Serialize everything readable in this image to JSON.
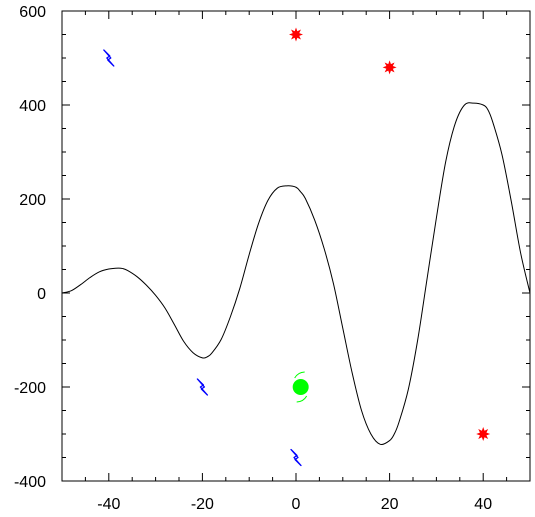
{
  "chart_data": {
    "type": "line",
    "title": "",
    "xlabel": "",
    "ylabel": "",
    "xlim": [
      -50,
      50
    ],
    "ylim": [
      -400,
      600
    ],
    "grid": false,
    "x_ticks": [
      -40,
      -20,
      0,
      20,
      40
    ],
    "y_ticks": [
      -400,
      -200,
      0,
      200,
      400,
      600
    ],
    "x_tick_labels": [
      "-40",
      "-20",
      "0",
      "20",
      "40"
    ],
    "y_tick_labels": [
      "-400",
      "-200",
      "0",
      "200",
      "400",
      "600"
    ],
    "series": [
      {
        "style": "line",
        "color": "#000000",
        "x": [
          -50,
          -48,
          -46,
          -44,
          -42,
          -40,
          -38,
          -37,
          -36,
          -34,
          -32,
          -30,
          -28,
          -26,
          -24,
          -22,
          -20,
          -19,
          -18,
          -16,
          -14,
          -12,
          -10,
          -8,
          -6,
          -4,
          -2,
          0,
          1,
          2,
          4,
          6,
          8,
          10,
          12,
          14,
          16,
          18,
          20,
          21,
          22,
          24,
          26,
          28,
          30,
          32,
          34,
          36,
          38,
          40,
          41,
          42,
          44,
          46,
          48,
          50
        ],
        "y": [
          0,
          5,
          18,
          33,
          45,
          51,
          53,
          52,
          48,
          35,
          17,
          -5,
          -32,
          -67,
          -103,
          -127,
          -138,
          -136,
          -128,
          -99,
          -50,
          10,
          82,
          148,
          197,
          223,
          228,
          225,
          215,
          201,
          155,
          95,
          20,
          -75,
          -170,
          -250,
          -300,
          -322,
          -314,
          -300,
          -275,
          -205,
          -100,
          30,
          160,
          280,
          360,
          400,
          404,
          400,
          390,
          365,
          295,
          195,
          85,
          0
        ]
      },
      {
        "style": "markers",
        "marker": "star",
        "color": "#ff0000",
        "x": [
          0,
          20,
          40
        ],
        "y": [
          550,
          480,
          -300
        ]
      },
      {
        "style": "markers",
        "marker": "lightning",
        "color": "#0000ff",
        "x": [
          -40,
          -20,
          0
        ],
        "y": [
          500,
          -200,
          -350
        ]
      },
      {
        "style": "markers",
        "marker": "circle",
        "color": "#00ff00",
        "x": [
          1
        ],
        "y": [
          -200
        ]
      }
    ]
  }
}
